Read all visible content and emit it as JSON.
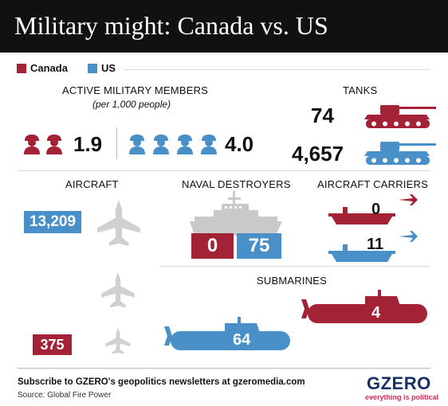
{
  "title": "Military might: Canada vs. US",
  "legend": {
    "canada": {
      "label": "Canada",
      "color": "#a32236"
    },
    "us": {
      "label": "US",
      "color": "#4a90c8"
    }
  },
  "colors": {
    "canada": "#a32236",
    "us": "#4a90c8",
    "gray": "#c9c9c9",
    "aircraft_gray": "#d0d0d0"
  },
  "chart_data": [
    {
      "type": "table",
      "title": "ACTIVE MILITARY MEMBERS",
      "subtitle": "(per 1,000 people)",
      "series": [
        {
          "name": "Canada",
          "value": 1.9,
          "label": "1.9",
          "icon_count": 2
        },
        {
          "name": "US",
          "value": 4.0,
          "label": "4.0",
          "icon_count": 4
        }
      ]
    },
    {
      "type": "table",
      "title": "TANKS",
      "series": [
        {
          "name": "Canada",
          "value": 74,
          "label": "74"
        },
        {
          "name": "US",
          "value": 4657,
          "label": "4,657"
        }
      ]
    },
    {
      "type": "bar",
      "title": "AIRCRAFT",
      "series": [
        {
          "name": "US",
          "value": 13209,
          "label": "13,209"
        },
        {
          "name": "Canada",
          "value": 375,
          "label": "375"
        }
      ]
    },
    {
      "type": "bar",
      "title": "NAVAL DESTROYERS",
      "series": [
        {
          "name": "Canada",
          "value": 0,
          "label": "0"
        },
        {
          "name": "US",
          "value": 75,
          "label": "75"
        }
      ]
    },
    {
      "type": "table",
      "title": "AIRCRAFT CARRIERS",
      "series": [
        {
          "name": "Canada",
          "value": 0,
          "label": "0"
        },
        {
          "name": "US",
          "value": 11,
          "label": "11"
        }
      ]
    },
    {
      "type": "table",
      "title": "SUBMARINES",
      "series": [
        {
          "name": "Canada",
          "value": 4,
          "label": "4"
        },
        {
          "name": "US",
          "value": 64,
          "label": "64"
        }
      ]
    }
  ],
  "footer": {
    "subscribe": "Subscribe to GZERO's geopolitics newsletters at gzeromedia.com",
    "source": "Source: Global Fire Power",
    "logo": "GZERO",
    "tagline": "everything is political"
  }
}
